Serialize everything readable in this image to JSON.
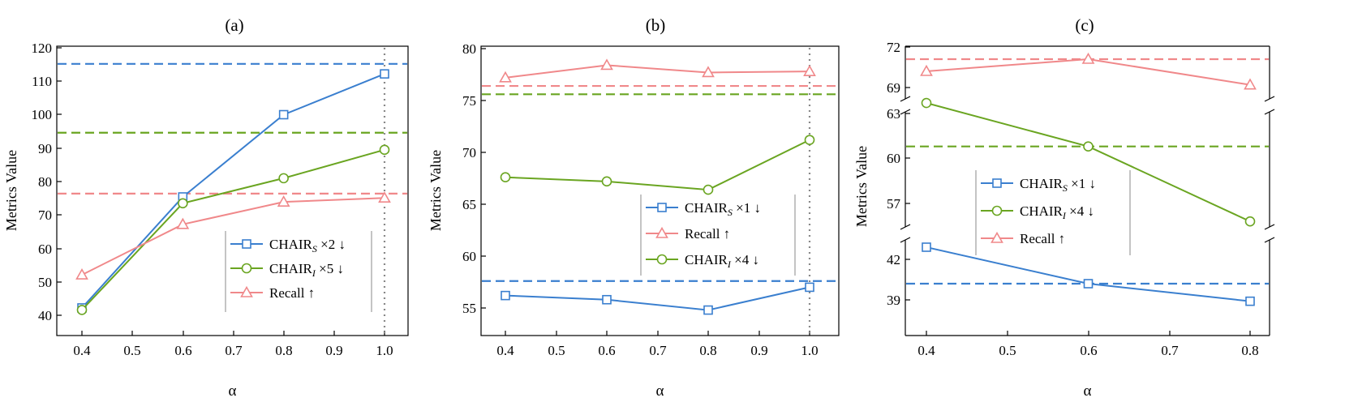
{
  "chart_data": [
    {
      "type": "line",
      "title": "(a)",
      "xlabel": "α",
      "ylabel": "Metrics Value",
      "xlim": [
        0.35,
        1.05
      ],
      "ylim": [
        35,
        120
      ],
      "xticks": [
        "0.4",
        "0.5",
        "0.6",
        "0.7",
        "0.8",
        "0.9",
        "1.0"
      ],
      "yticks": [
        "40",
        "50",
        "60",
        "70",
        "80",
        "90",
        "100",
        "110",
        "120"
      ],
      "x": [
        0.4,
        0.6,
        0.8,
        1.0
      ],
      "series": [
        {
          "name": "CHAIR",
          "subscript": "S",
          "suffix": " ×2 ↓",
          "color": "#3a7fcf",
          "marker": "square",
          "values": [
            42.2,
            75.4,
            100.0,
            112.2
          ],
          "baseline": 115.2
        },
        {
          "name": "CHAIR",
          "subscript": "I",
          "suffix": " ×5 ↓",
          "color": "#6aa521",
          "marker": "circle",
          "values": [
            41.6,
            73.5,
            81.0,
            89.5
          ],
          "baseline": 94.6
        },
        {
          "name": "Recall",
          "subscript": "",
          "suffix": " ↑",
          "color": "#f0888a",
          "marker": "triangle",
          "values": [
            52.1,
            67.2,
            73.9,
            75.1
          ],
          "baseline": 76.4
        }
      ],
      "vline_x": 1.0,
      "legend": "bottom-right"
    },
    {
      "type": "line",
      "title": "(b)",
      "xlabel": "α",
      "ylabel": "Metrics Value",
      "xlim": [
        0.35,
        1.05
      ],
      "ylim": [
        52.5,
        80.5
      ],
      "xticks": [
        "0.4",
        "0.5",
        "0.6",
        "0.7",
        "0.8",
        "0.9",
        "1.0"
      ],
      "yticks": [
        "55",
        "60",
        "65",
        "70",
        "75",
        "80"
      ],
      "x": [
        0.4,
        0.6,
        0.8,
        1.0
      ],
      "series": [
        {
          "name": "CHAIR",
          "subscript": "S",
          "suffix": " ×1 ↓",
          "color": "#3a7fcf",
          "marker": "square",
          "values": [
            56.2,
            55.8,
            54.8,
            57.0
          ],
          "baseline": 57.6
        },
        {
          "name": "Recall",
          "subscript": "",
          "suffix": " ↑",
          "color": "#f0888a",
          "marker": "triangle",
          "values": [
            77.2,
            78.4,
            77.7,
            77.8
          ],
          "baseline": 76.4
        },
        {
          "name": "CHAIR",
          "subscript": "I",
          "suffix": " ×4 ↓",
          "color": "#6aa521",
          "marker": "circle",
          "values": [
            67.6,
            67.2,
            66.4,
            71.2
          ],
          "baseline": 75.6
        }
      ],
      "vline_x": 1.0,
      "legend": "center-right"
    },
    {
      "type": "line",
      "title": "(c)",
      "xlabel": "α",
      "ylabel": "Metrics Value",
      "xlim": [
        0.35,
        0.82
      ],
      "xticks": [
        "0.4",
        "0.5",
        "0.6",
        "0.7",
        "0.8"
      ],
      "y_axis_breaks": true,
      "y_segments": [
        {
          "ylim": [
            68,
            72.3
          ],
          "yticks": [
            "69",
            "72"
          ]
        },
        {
          "ylim": [
            54.5,
            64.5
          ],
          "yticks": [
            "57",
            "60",
            "63"
          ]
        },
        {
          "ylim": [
            37.5,
            43.5
          ],
          "yticks": [
            "39",
            "42"
          ]
        }
      ],
      "x": [
        0.4,
        0.6,
        0.8
      ],
      "series": [
        {
          "name": "CHAIR",
          "subscript": "S",
          "suffix": " ×1 ↓",
          "color": "#3a7fcf",
          "marker": "square",
          "values": [
            42.9,
            40.2,
            38.9
          ],
          "baseline": 40.2
        },
        {
          "name": "CHAIR",
          "subscript": "I",
          "suffix": " ×4 ↓",
          "color": "#6aa521",
          "marker": "circle",
          "values": [
            63.7,
            60.8,
            55.8
          ],
          "baseline": 60.8
        },
        {
          "name": "Recall",
          "subscript": "",
          "suffix": " ↑",
          "color": "#f0888a",
          "marker": "triangle",
          "values": [
            70.2,
            71.1,
            69.2
          ],
          "baseline": 71.1
        }
      ],
      "legend": "center"
    }
  ]
}
